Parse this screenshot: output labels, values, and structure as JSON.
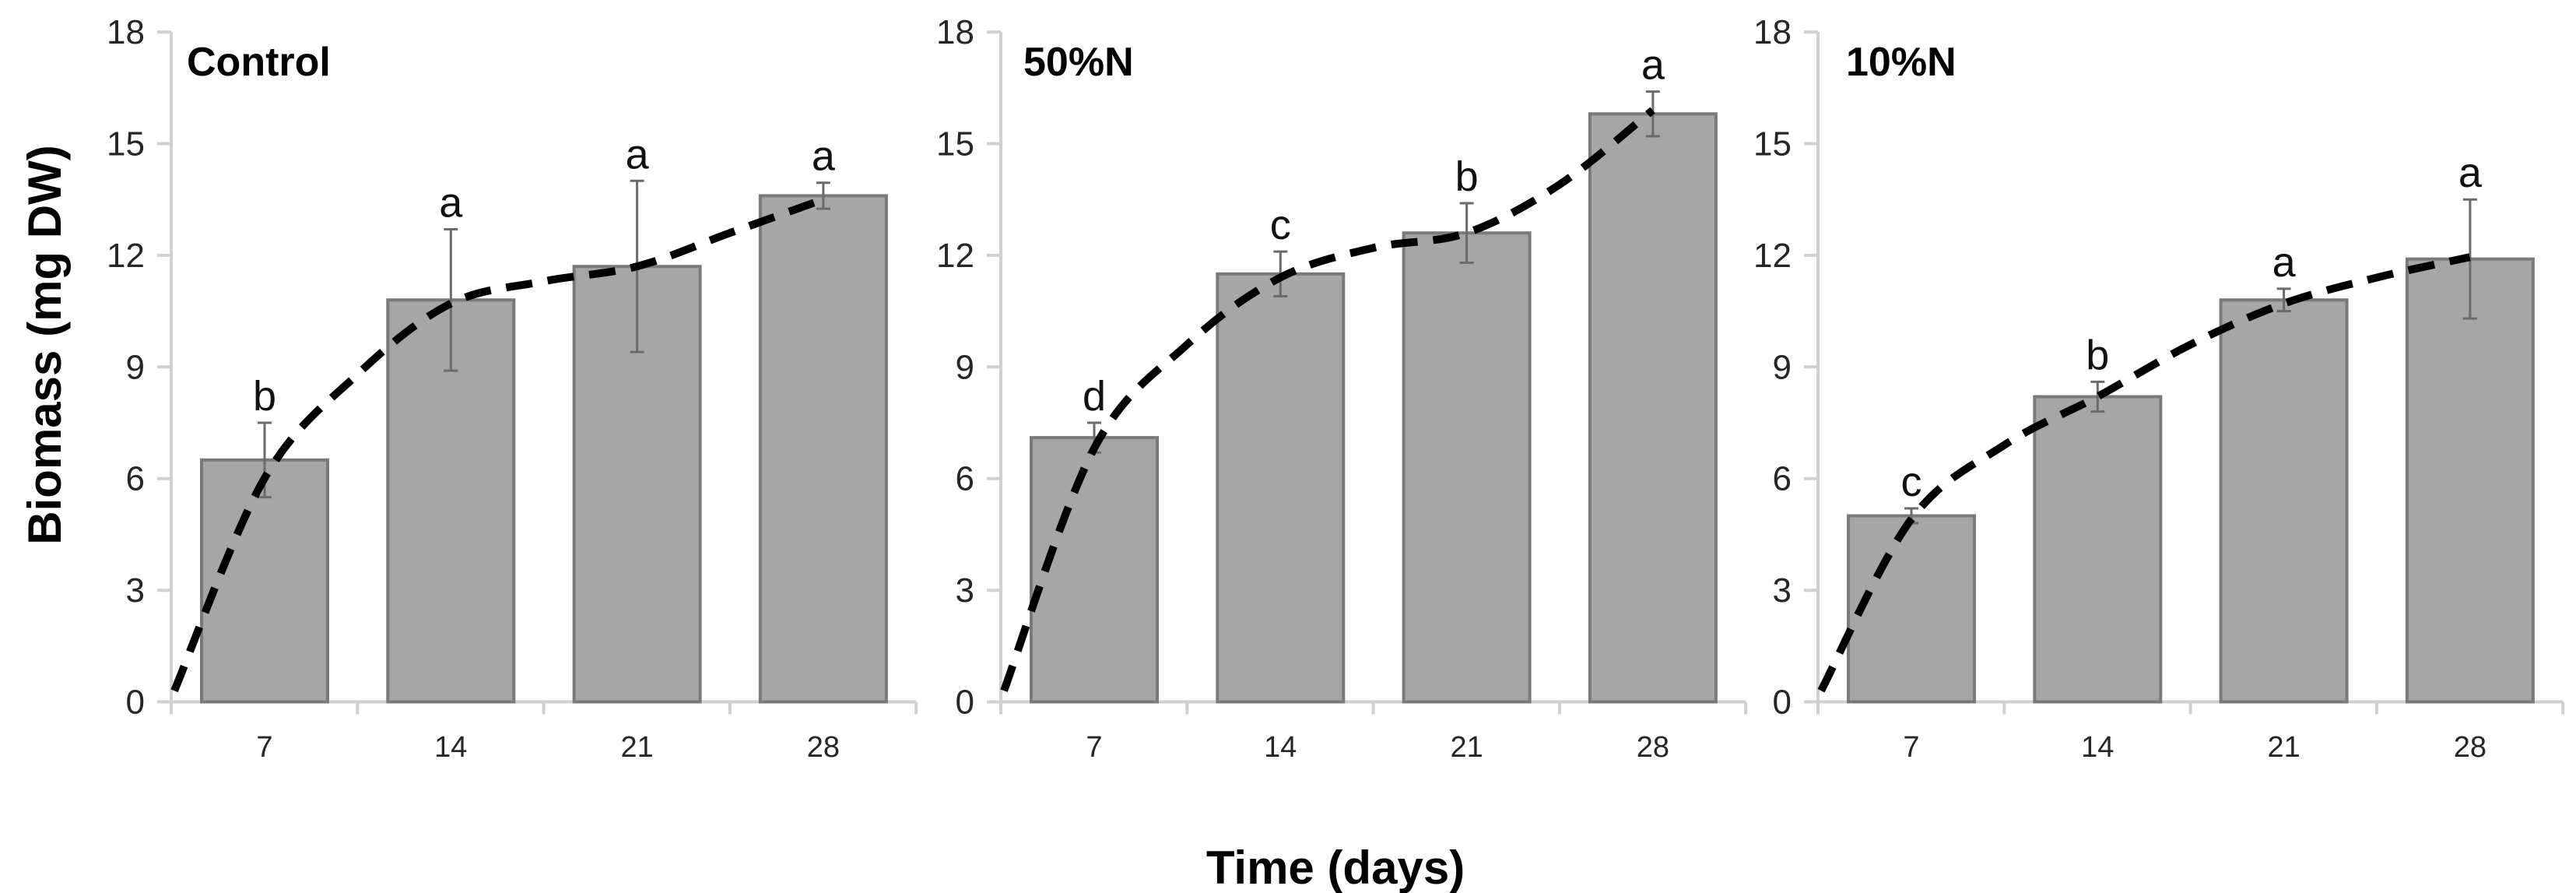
{
  "figure": {
    "y_axis_title": "Biomass (mg DW)",
    "x_axis_title": "Time (days)",
    "y_ticks": [
      "0",
      "3",
      "6",
      "9",
      "12",
      "15",
      "18"
    ],
    "x_categories": [
      "7",
      "14",
      "21",
      "28"
    ]
  },
  "colors": {
    "bar_fill": "#a6a6a6",
    "bar_border": "#7a7a7a",
    "error_bar": "#6b6b6b",
    "axis": "#d0d0d0",
    "trend_line": "#000000"
  },
  "chart_data": [
    {
      "type": "bar",
      "title": "Control",
      "categories": [
        "7",
        "14",
        "21",
        "28"
      ],
      "values": [
        6.5,
        10.8,
        11.7,
        13.6
      ],
      "errors": [
        1.0,
        1.9,
        2.3,
        0.35
      ],
      "significance_letters": [
        "b",
        "a",
        "a",
        "a"
      ],
      "trend_line": {
        "style": "dashed",
        "type": "fitted curve",
        "points": [
          [
            0,
            0.3
          ],
          [
            0.5,
            6.0
          ],
          [
            1.0,
            8.8
          ],
          [
            1.5,
            10.7
          ],
          [
            2.0,
            11.3
          ],
          [
            2.5,
            11.7
          ],
          [
            3.0,
            12.6
          ],
          [
            3.5,
            13.5
          ]
        ]
      },
      "xlabel": "Time (days)",
      "ylabel": "Biomass (mg DW)",
      "ylim": [
        0,
        18
      ],
      "grid": false
    },
    {
      "type": "bar",
      "title": "50%N",
      "categories": [
        "7",
        "14",
        "21",
        "28"
      ],
      "values": [
        7.1,
        11.5,
        12.6,
        15.8
      ],
      "errors": [
        0.4,
        0.6,
        0.8,
        0.6
      ],
      "significance_letters": [
        "d",
        "c",
        "b",
        "a"
      ],
      "trend_line": {
        "style": "dashed",
        "type": "fitted curve",
        "points": [
          [
            0,
            0.3
          ],
          [
            0.5,
            6.8
          ],
          [
            1.0,
            9.6
          ],
          [
            1.5,
            11.4
          ],
          [
            2.0,
            12.2
          ],
          [
            2.5,
            12.6
          ],
          [
            3.0,
            13.9
          ],
          [
            3.5,
            15.9
          ]
        ]
      },
      "xlabel": "Time (days)",
      "ylabel": "Biomass (mg DW)",
      "ylim": [
        0,
        18
      ],
      "grid": false
    },
    {
      "type": "bar",
      "title": "10%N",
      "categories": [
        "7",
        "14",
        "21",
        "28"
      ],
      "values": [
        5.0,
        8.2,
        10.8,
        11.9
      ],
      "errors": [
        0.2,
        0.4,
        0.3,
        1.6
      ],
      "significance_letters": [
        "c",
        "b",
        "a",
        "a"
      ],
      "trend_line": {
        "style": "dashed",
        "type": "fitted curve",
        "points": [
          [
            0,
            0.3
          ],
          [
            0.5,
            4.9
          ],
          [
            1.0,
            6.9
          ],
          [
            1.5,
            8.2
          ],
          [
            2.0,
            9.6
          ],
          [
            2.5,
            10.7
          ],
          [
            3.0,
            11.4
          ],
          [
            3.5,
            11.95
          ]
        ]
      },
      "xlabel": "Time (days)",
      "ylabel": "Biomass (mg DW)",
      "ylim": [
        0,
        18
      ],
      "grid": false
    }
  ]
}
